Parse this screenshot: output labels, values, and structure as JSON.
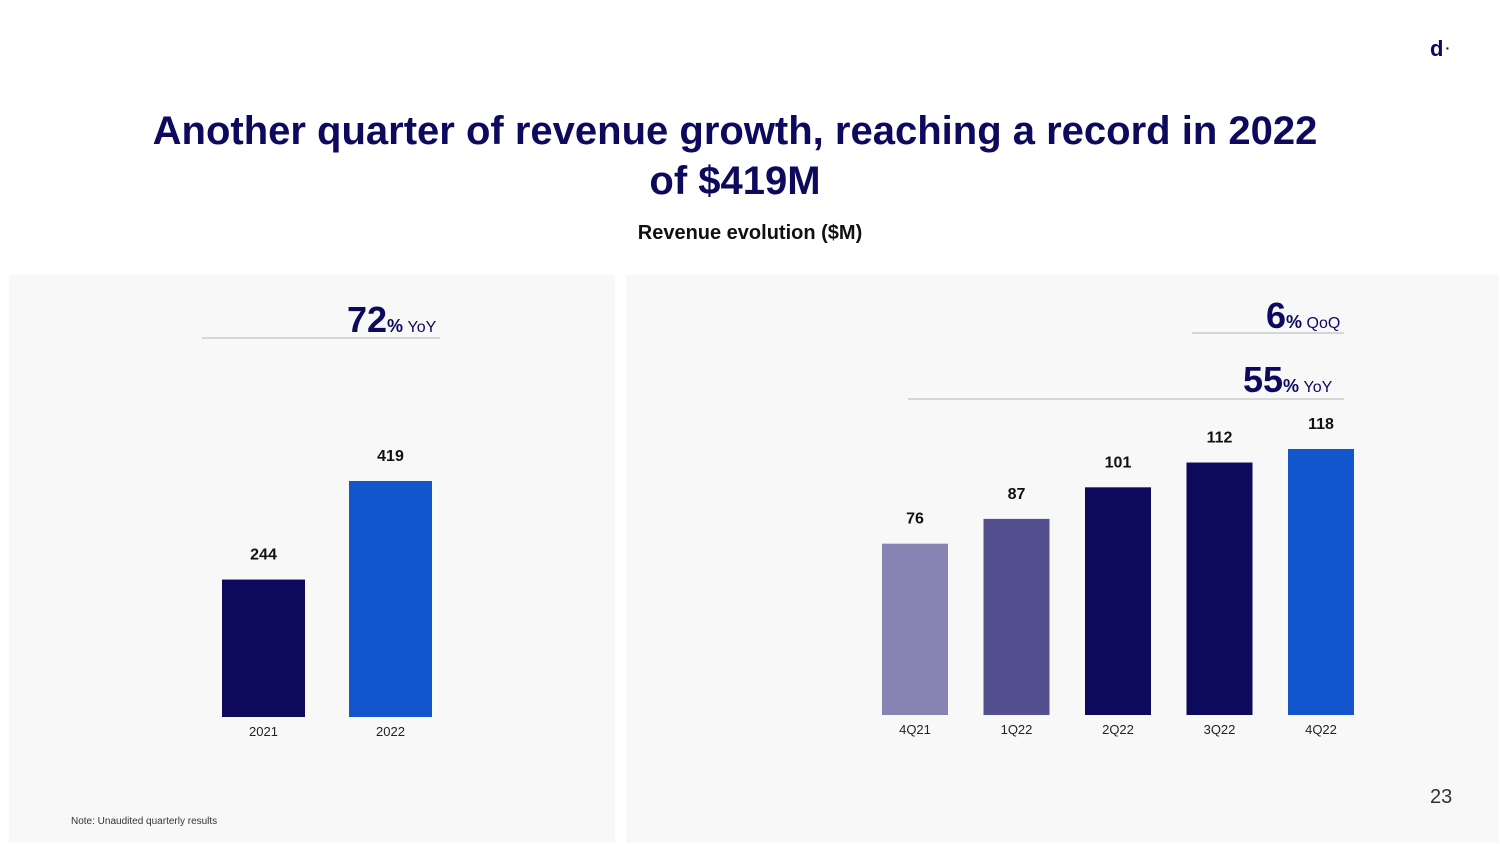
{
  "logo": {
    "text": "d",
    "dot": "·"
  },
  "title": "Another quarter of revenue growth, reaching a record in 2022 of $419M",
  "subtitle": "Revenue evolution ($M)",
  "page_number": "23",
  "note": "Note: Unaudited quarterly results",
  "colors": {
    "navy": "#0d0a5e",
    "blue": "#1255cc",
    "light_purple": "#8784b3",
    "mid_purple": "#545090"
  },
  "growth_annual": {
    "value": "72",
    "unit": "%",
    "label": "YoY"
  },
  "growth_quarterly_qoq": {
    "value": "6",
    "unit": "%",
    "label": "QoQ"
  },
  "growth_quarterly_yoy": {
    "value": "55",
    "unit": "%",
    "label": "YoY"
  },
  "chart_data": [
    {
      "type": "bar",
      "title": "Revenue evolution ($M)",
      "categories": [
        "2021",
        "2022"
      ],
      "values": [
        244,
        419
      ],
      "colors": [
        "#0d0a5e",
        "#1255cc"
      ],
      "ylim": [
        0,
        419
      ]
    },
    {
      "type": "bar",
      "title": "Revenue evolution ($M)",
      "categories": [
        "4Q21",
        "1Q22",
        "2Q22",
        "3Q22",
        "4Q22"
      ],
      "values": [
        76,
        87,
        101,
        112,
        118
      ],
      "colors": [
        "#8784b3",
        "#545090",
        "#0d0a5e",
        "#0d0a5e",
        "#1255cc"
      ],
      "ylim": [
        0,
        118
      ]
    }
  ]
}
